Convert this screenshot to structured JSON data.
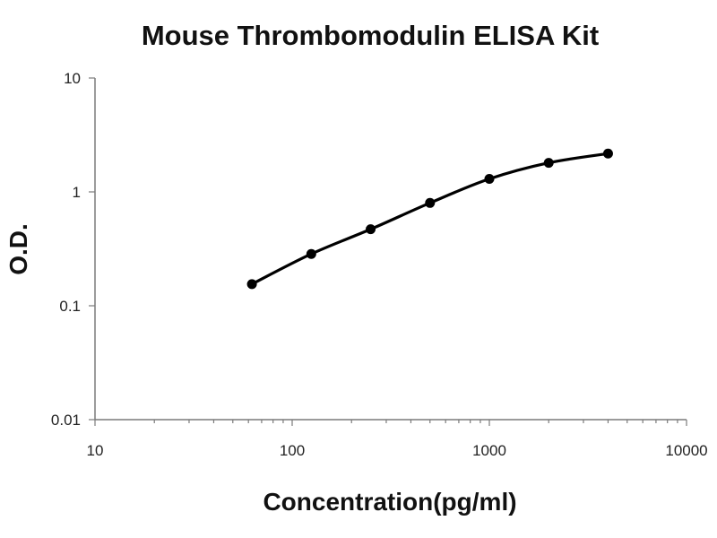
{
  "chart_data": {
    "type": "scatter",
    "title": "Mouse Thrombomodulin ELISA Kit",
    "xlabel": "Concentration(pg/ml)",
    "ylabel": "O.D.",
    "x_scale": "log",
    "y_scale": "log",
    "xlim": [
      10,
      10000
    ],
    "ylim": [
      0.01,
      10
    ],
    "x_ticks": [
      "10",
      "100",
      "1000",
      "10000"
    ],
    "y_ticks": [
      "10",
      "1",
      "0.1",
      "0.01"
    ],
    "grid": false,
    "series": [
      {
        "x": [
          62.5,
          125,
          250,
          500,
          1000,
          2000,
          4000
        ],
        "y": [
          0.155,
          0.285,
          0.47,
          0.8,
          1.3,
          1.8,
          2.17
        ],
        "marker_color": "#000000",
        "line_color": "#000000",
        "fit": "smooth"
      }
    ]
  }
}
